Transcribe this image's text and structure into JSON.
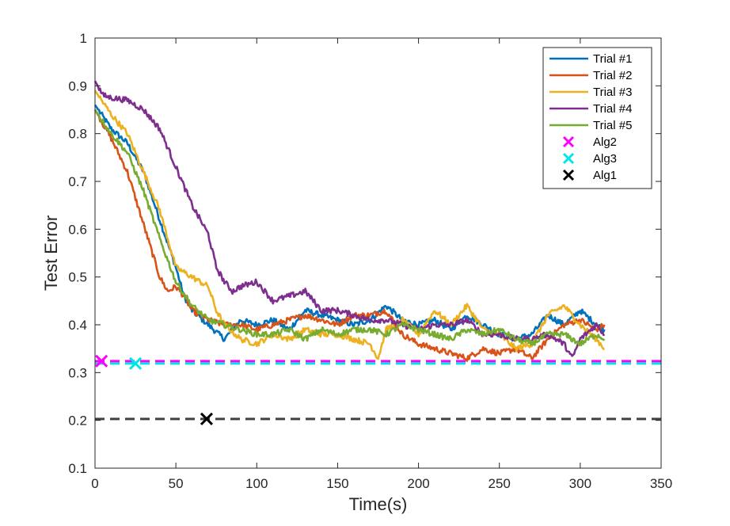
{
  "chart_data": {
    "type": "line",
    "title": "",
    "xlabel": "Time(s)",
    "ylabel": "Test Error",
    "xlim": [
      0,
      350
    ],
    "ylim": [
      0.1,
      1
    ],
    "xticks": [
      0,
      50,
      100,
      150,
      200,
      250,
      300,
      350
    ],
    "yticks": [
      0.1,
      0.2,
      0.3,
      0.4,
      0.5,
      0.6,
      0.7,
      0.8,
      0.9,
      1
    ],
    "xtick_labels": [
      "0",
      "50",
      "100",
      "150",
      "200",
      "250",
      "300",
      "350"
    ],
    "ytick_labels": [
      "0.1",
      "0.2",
      "0.3",
      "0.4",
      "0.5",
      "0.6",
      "0.7",
      "0.8",
      "0.9",
      "1"
    ],
    "grid": false,
    "legend_position": "top-right",
    "series": [
      {
        "name": "Trial #1",
        "color": "#0072BD",
        "x": [
          0,
          10,
          20,
          30,
          40,
          50,
          55,
          60,
          70,
          80,
          90,
          100,
          110,
          120,
          130,
          140,
          150,
          160,
          170,
          180,
          190,
          200,
          210,
          220,
          230,
          240,
          250,
          260,
          270,
          280,
          290,
          300,
          310,
          315
        ],
        "y": [
          0.86,
          0.81,
          0.78,
          0.72,
          0.62,
          0.52,
          0.46,
          0.43,
          0.4,
          0.37,
          0.41,
          0.4,
          0.41,
          0.39,
          0.43,
          0.42,
          0.41,
          0.4,
          0.41,
          0.44,
          0.41,
          0.4,
          0.41,
          0.39,
          0.42,
          0.4,
          0.38,
          0.37,
          0.38,
          0.42,
          0.4,
          0.43,
          0.4,
          0.39
        ]
      },
      {
        "name": "Trial #2",
        "color": "#D95319",
        "x": [
          0,
          10,
          20,
          30,
          40,
          45,
          50,
          55,
          60,
          70,
          80,
          90,
          100,
          110,
          120,
          130,
          140,
          150,
          160,
          170,
          180,
          190,
          200,
          210,
          220,
          230,
          240,
          250,
          260,
          270,
          280,
          290,
          300,
          310,
          315
        ],
        "y": [
          0.85,
          0.79,
          0.72,
          0.61,
          0.5,
          0.47,
          0.48,
          0.46,
          0.43,
          0.41,
          0.4,
          0.4,
          0.39,
          0.4,
          0.41,
          0.42,
          0.41,
          0.4,
          0.42,
          0.42,
          0.43,
          0.38,
          0.36,
          0.35,
          0.34,
          0.33,
          0.35,
          0.34,
          0.35,
          0.33,
          0.37,
          0.4,
          0.41,
          0.39,
          0.4
        ]
      },
      {
        "name": "Trial #3",
        "color": "#EDB120",
        "x": [
          0,
          10,
          20,
          30,
          40,
          50,
          55,
          60,
          70,
          75,
          80,
          90,
          100,
          110,
          120,
          130,
          140,
          150,
          160,
          170,
          175,
          180,
          190,
          200,
          210,
          220,
          230,
          240,
          250,
          260,
          270,
          280,
          290,
          300,
          310,
          315
        ],
        "y": [
          0.89,
          0.84,
          0.8,
          0.72,
          0.64,
          0.52,
          0.51,
          0.5,
          0.48,
          0.43,
          0.4,
          0.37,
          0.36,
          0.38,
          0.37,
          0.39,
          0.38,
          0.38,
          0.37,
          0.36,
          0.33,
          0.39,
          0.41,
          0.38,
          0.43,
          0.4,
          0.44,
          0.39,
          0.38,
          0.35,
          0.36,
          0.42,
          0.44,
          0.4,
          0.37,
          0.35
        ]
      },
      {
        "name": "Trial #4",
        "color": "#7E2F8E",
        "x": [
          0,
          5,
          10,
          20,
          30,
          40,
          50,
          60,
          70,
          75,
          80,
          85,
          90,
          100,
          110,
          120,
          130,
          140,
          150,
          160,
          170,
          180,
          190,
          200,
          210,
          220,
          230,
          240,
          250,
          260,
          270,
          280,
          290,
          295,
          300,
          310,
          315
        ],
        "y": [
          0.91,
          0.88,
          0.875,
          0.87,
          0.85,
          0.81,
          0.73,
          0.65,
          0.59,
          0.52,
          0.49,
          0.47,
          0.48,
          0.49,
          0.45,
          0.46,
          0.47,
          0.43,
          0.43,
          0.42,
          0.41,
          0.41,
          0.4,
          0.39,
          0.4,
          0.4,
          0.41,
          0.38,
          0.38,
          0.37,
          0.37,
          0.38,
          0.36,
          0.33,
          0.37,
          0.4,
          0.38
        ]
      },
      {
        "name": "Trial #5",
        "color": "#77AC30",
        "x": [
          0,
          10,
          20,
          30,
          40,
          50,
          60,
          70,
          80,
          90,
          100,
          110,
          120,
          130,
          140,
          150,
          160,
          170,
          180,
          190,
          200,
          210,
          220,
          230,
          240,
          250,
          260,
          270,
          280,
          290,
          300,
          310,
          315
        ],
        "y": [
          0.85,
          0.8,
          0.76,
          0.68,
          0.58,
          0.49,
          0.44,
          0.41,
          0.4,
          0.39,
          0.38,
          0.38,
          0.39,
          0.37,
          0.39,
          0.38,
          0.39,
          0.39,
          0.38,
          0.4,
          0.39,
          0.38,
          0.37,
          0.39,
          0.38,
          0.39,
          0.37,
          0.36,
          0.38,
          0.38,
          0.36,
          0.38,
          0.37
        ]
      }
    ],
    "baselines": [
      {
        "name": "Alg2",
        "color": "#FF00FF",
        "marker_x": 4,
        "y": 0.324
      },
      {
        "name": "Alg3",
        "color": "#00E5E5",
        "marker_x": 25,
        "y": 0.319
      },
      {
        "name": "Alg1",
        "color": "#000000",
        "line_color": "#404040",
        "marker_x": 69,
        "y": 0.203
      }
    ]
  }
}
